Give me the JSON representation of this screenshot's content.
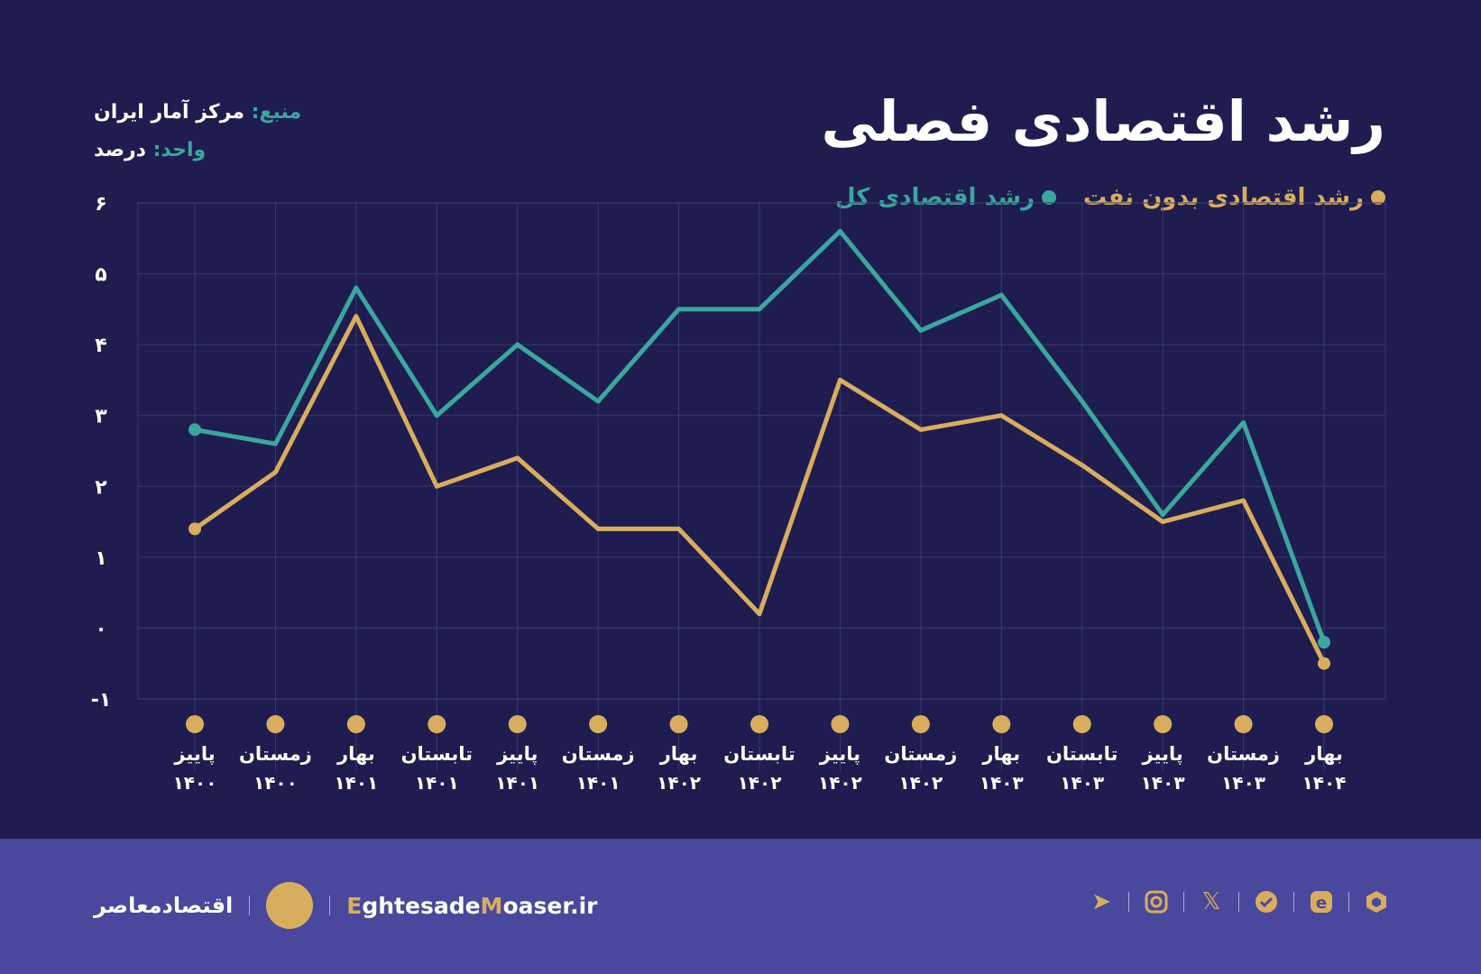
{
  "title": "رشد اقتصادی فصلی",
  "source": {
    "label": "منبع:",
    "value": "مرکز آمار ایران"
  },
  "unit": {
    "label": "واحد:",
    "value": "درصد"
  },
  "colors": {
    "background": "#1f1d4f",
    "footer": "#4a489c",
    "teal": "#3aa7a0",
    "gold": "#d8ae5e"
  },
  "chart_data": {
    "type": "line",
    "title": "رشد اقتصادی فصلی",
    "ylim": [
      -1,
      6
    ],
    "yticks": [
      "-۱",
      "۰",
      "۱",
      "۲",
      "۳",
      "۴",
      "۵",
      "۶"
    ],
    "ytick_values": [
      -1,
      0,
      1,
      2,
      3,
      4,
      5,
      6
    ],
    "grid": true,
    "legend_position": "top-right",
    "categories": [
      {
        "season": "پاییز",
        "year": "۱۴۰۰"
      },
      {
        "season": "زمستان",
        "year": "۱۴۰۰"
      },
      {
        "season": "بهار",
        "year": "۱۴۰۱"
      },
      {
        "season": "تابستان",
        "year": "۱۴۰۱"
      },
      {
        "season": "پاییز",
        "year": "۱۴۰۱"
      },
      {
        "season": "زمستان",
        "year": "۱۴۰۱"
      },
      {
        "season": "بهار",
        "year": "۱۴۰۲"
      },
      {
        "season": "تابستان",
        "year": "۱۴۰۲"
      },
      {
        "season": "پاییز",
        "year": "۱۴۰۲"
      },
      {
        "season": "زمستان",
        "year": "۱۴۰۲"
      },
      {
        "season": "بهار",
        "year": "۱۴۰۳"
      },
      {
        "season": "تابستان",
        "year": "۱۴۰۳"
      },
      {
        "season": "پاییز",
        "year": "۱۴۰۳"
      },
      {
        "season": "زمستان",
        "year": "۱۴۰۳"
      },
      {
        "season": "بهار",
        "year": "۱۴۰۴"
      }
    ],
    "series": [
      {
        "name": "رشد اقتصادی کل",
        "color": "#3aa7a0",
        "values": [
          2.8,
          2.6,
          4.8,
          3.0,
          4.0,
          3.2,
          4.5,
          4.5,
          5.6,
          4.2,
          4.7,
          3.2,
          1.6,
          2.9,
          -0.2
        ]
      },
      {
        "name": "رشد اقتصادی بدون نفت",
        "color": "#d8ae5e",
        "values": [
          1.4,
          2.2,
          4.4,
          2.0,
          2.4,
          1.4,
          1.4,
          0.2,
          3.5,
          2.8,
          3.0,
          2.3,
          1.5,
          1.8,
          -0.5
        ]
      }
    ]
  },
  "footer": {
    "brand_name": "اقتصادمعاصر",
    "site_prefix": "E",
    "site_part1": "ghtesade",
    "site_m": "M",
    "site_part2": "oaser.ir",
    "social_icons": [
      "telegram-icon",
      "instagram-icon",
      "x-icon",
      "bale-icon",
      "eitaa-icon",
      "rubika-icon"
    ]
  }
}
